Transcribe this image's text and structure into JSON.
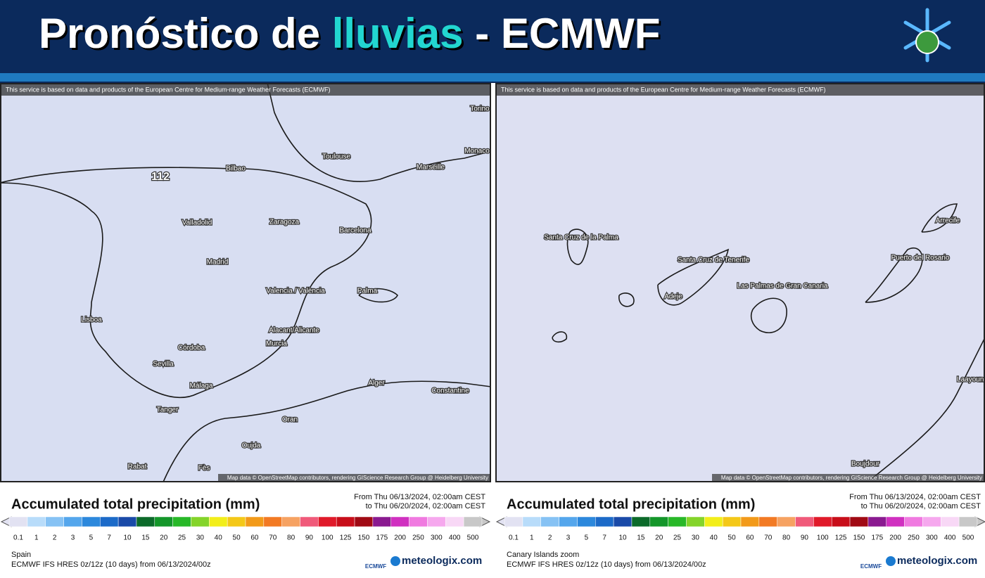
{
  "header": {
    "title_parts": [
      "Pronóstico de ",
      "lluvias",
      " - ECMWF"
    ]
  },
  "panels": [
    {
      "attribution": "This service is based on data and products of the European Centre for Medium-range Weather Forecasts (ECMWF)",
      "map_credit": "Map data © OpenStreetMap contributors, rendering GIScience Research Group @ Heidelberg University",
      "labels": [
        "Torino",
        "Monaco",
        "Marseille",
        "Toulouse",
        "Bilbao",
        "112",
        "Zaragoza",
        "Barcelona",
        "Valladolid",
        "Madrid",
        "Valencia / València",
        "Palma",
        "Lisboa",
        "Alacant/Alicante",
        "Murcia",
        "Córdoba",
        "Sevilla",
        "Málaga",
        "Tanger",
        "Alger",
        "Constantine",
        "Oran",
        "Oujda",
        "Rabat",
        "Fès"
      ],
      "legend_title": "Accumulated total precipitation (mm)",
      "date_from": "From Thu 06/13/2024, 02:00am CEST",
      "date_to": "to Thu 06/20/2024, 02:00am CEST",
      "scale_labels": [
        "0.1",
        "1",
        "2",
        "3",
        "5",
        "7",
        "10",
        "15",
        "20",
        "25",
        "30",
        "40",
        "50",
        "60",
        "70",
        "80",
        "90",
        "100",
        "125",
        "150",
        "175",
        "200",
        "250",
        "300",
        "400",
        "500"
      ],
      "region": "Spain",
      "model": "ECMWF IFS HRES 0z/12z (10 days) from 06/13/2024/00z",
      "brand_small": "ECMWF",
      "brand": "meteologix.com"
    },
    {
      "attribution": "This service is based on data and products of the European Centre for Medium-range Weather Forecasts (ECMWF)",
      "map_credit": "Map data © OpenStreetMap contributors, rendering GIScience Research Group @ Heidelberg University",
      "labels": [
        "Santa Cruz de la Palma",
        "Santa Cruz de Tenerife",
        "Adeje",
        "Las Palmas de Gran Canaria",
        "Puerto del Rosario",
        "Arrecife",
        "Laayoune",
        "Boujdour"
      ],
      "legend_title": "Accumulated total precipitation (mm)",
      "date_from": "From Thu 06/13/2024, 02:00am CEST",
      "date_to": "to Thu 06/20/2024, 02:00am CEST",
      "scale_labels": [
        "0.1",
        "1",
        "2",
        "3",
        "5",
        "7",
        "10",
        "15",
        "20",
        "25",
        "30",
        "40",
        "50",
        "60",
        "70",
        "80",
        "90",
        "100",
        "125",
        "150",
        "175",
        "200",
        "250",
        "300",
        "400",
        "500"
      ],
      "region": "Canary Islands zoom",
      "model": "ECMWF IFS HRES 0z/12z (10 days) from 06/13/2024/00z",
      "brand_small": "ECMWF",
      "brand": "meteologix.com"
    }
  ]
}
